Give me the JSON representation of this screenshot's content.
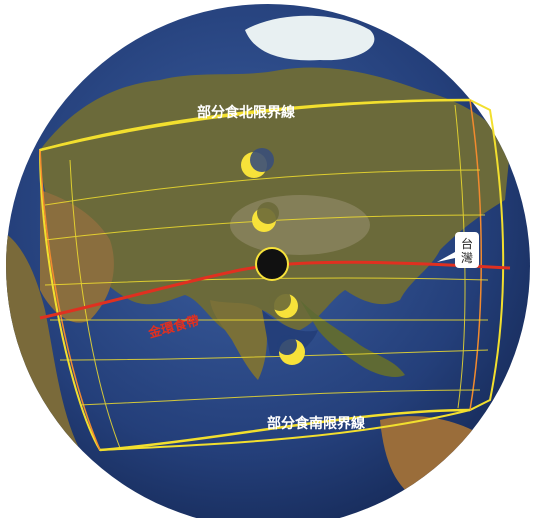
{
  "labels": {
    "northern_limit": "部分食北限界線",
    "southern_limit": "部分食南限界線",
    "annular_path": "金環食帶",
    "taiwan_line1": "台",
    "taiwan_line2": "灣"
  },
  "icons": {
    "eclipse_center": "total-eclipse-dot-icon",
    "partial_phase": "partial-eclipse-crescent-icon"
  },
  "colors": {
    "ocean": "#243f7a",
    "land": "#6b6a3a",
    "ice": "#e8f0f2",
    "limit_lines": "#f2df2e",
    "annular_line": "#e03020",
    "sun": "#f7e23a",
    "label_text": "#ffffff",
    "annular_label": "#e03020"
  }
}
